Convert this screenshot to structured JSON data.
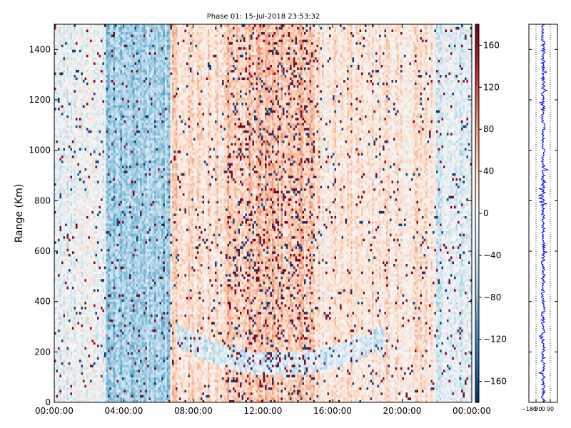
{
  "chart_data": [
    {
      "type": "heatmap",
      "title": "Phase 01: 15-Jul-2018 23:53:32",
      "xlabel": "",
      "ylabel": "Range (Km)",
      "x_tick_labels": [
        "00:00:00",
        "04:00:00",
        "08:00:00",
        "12:00:00",
        "16:00:00",
        "20:00:00",
        "00:00:00"
      ],
      "x_range_hours": [
        0,
        24
      ],
      "y_ticks": [
        0,
        200,
        400,
        600,
        800,
        1000,
        1200,
        1400
      ],
      "ylim": [
        0,
        1500
      ],
      "value_range": [
        -180,
        180
      ],
      "colormap": "RdBu_r",
      "colorbar_ticks": [
        160,
        120,
        80,
        40,
        0,
        -40,
        -80,
        -120,
        -160
      ],
      "colorbar_tick_labels": [
        "160",
        "120",
        "80",
        "40",
        "0",
        "−40",
        "−80",
        "−120",
        "−160"
      ],
      "regions": [
        {
          "time_hours": [
            0,
            3
          ],
          "typical_value": -10,
          "description": "mixed, near zero"
        },
        {
          "time_hours": [
            3,
            6.7
          ],
          "typical_value": -60,
          "description": "predominantly negative (blue vertical bands)"
        },
        {
          "time_hours": [
            6.7,
            10
          ],
          "typical_value": 30,
          "description": "predominantly positive"
        },
        {
          "time_hours": [
            10,
            15
          ],
          "typical_value": 45,
          "description": "strongly mixed, many saturated red and blue cells"
        },
        {
          "time_hours": [
            15,
            22
          ],
          "typical_value": 20,
          "description": "mildly positive"
        },
        {
          "time_hours": [
            22,
            24
          ],
          "typical_value": -20,
          "description": "mixed, slightly negative"
        }
      ],
      "features": [
        {
          "description": "low-value arc at low range",
          "range_km": [
            100,
            300
          ],
          "time_hours": [
            7,
            19
          ]
        }
      ]
    },
    {
      "type": "line",
      "title": "",
      "x_ticks": [
        -180,
        -90,
        0,
        90
      ],
      "x_tick_labels": [
        "−180",
        "−90",
        "0",
        "90"
      ],
      "xlim": [
        -180,
        180
      ],
      "ylim": [
        0,
        1500
      ],
      "grid": "vertical dotted lines",
      "series": [
        {
          "color": "#0000ff",
          "description": "phase profile vs range, centered near 0 with scatter of about ±30"
        }
      ]
    }
  ]
}
